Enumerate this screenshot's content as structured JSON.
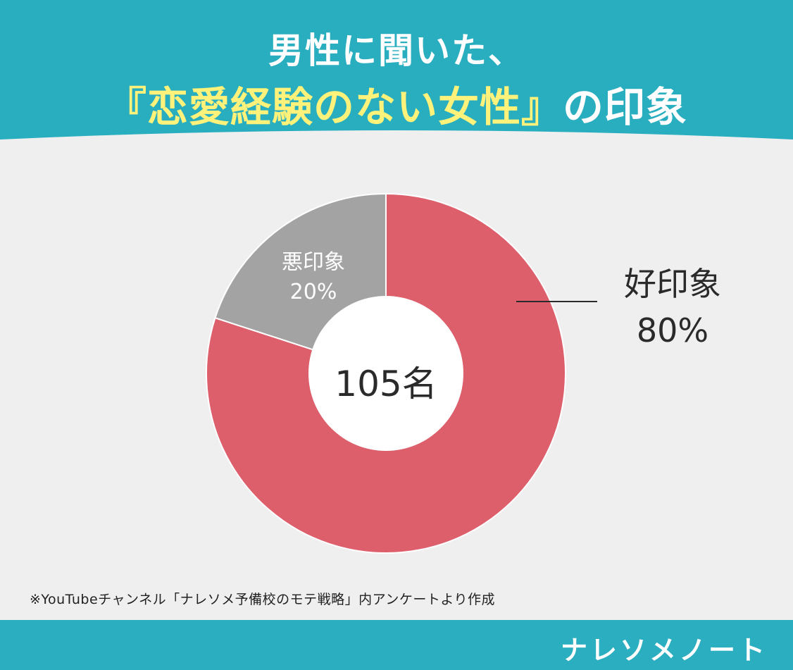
{
  "header": {
    "title_line_1": "男性に聞いた、",
    "title_line_2_main": "『恋愛経験のない女性』",
    "title_line_2_suffix": "の印象"
  },
  "chart_data": {
    "type": "pie",
    "donut": true,
    "center_label": "105名",
    "slices": [
      {
        "label": "好印象",
        "value": 80,
        "value_label": "80%",
        "color": "#de5f6c"
      },
      {
        "label": "悪印象",
        "value": 20,
        "value_label": "20%",
        "color": "#a3a3a3"
      }
    ],
    "slice_start": "12 o'clock, clockwise",
    "legend": "none"
  },
  "colors": {
    "header_bg": "#29aec0",
    "page_bg": "#efefef",
    "title_accent": "#fff27a",
    "footer_bg": "#2aaec0"
  },
  "source_note": "※YouTubeチャンネル「ナレソメ予備校のモテ戦略」内アンケートより作成",
  "footer": {
    "logo": "ナレソメノート"
  }
}
